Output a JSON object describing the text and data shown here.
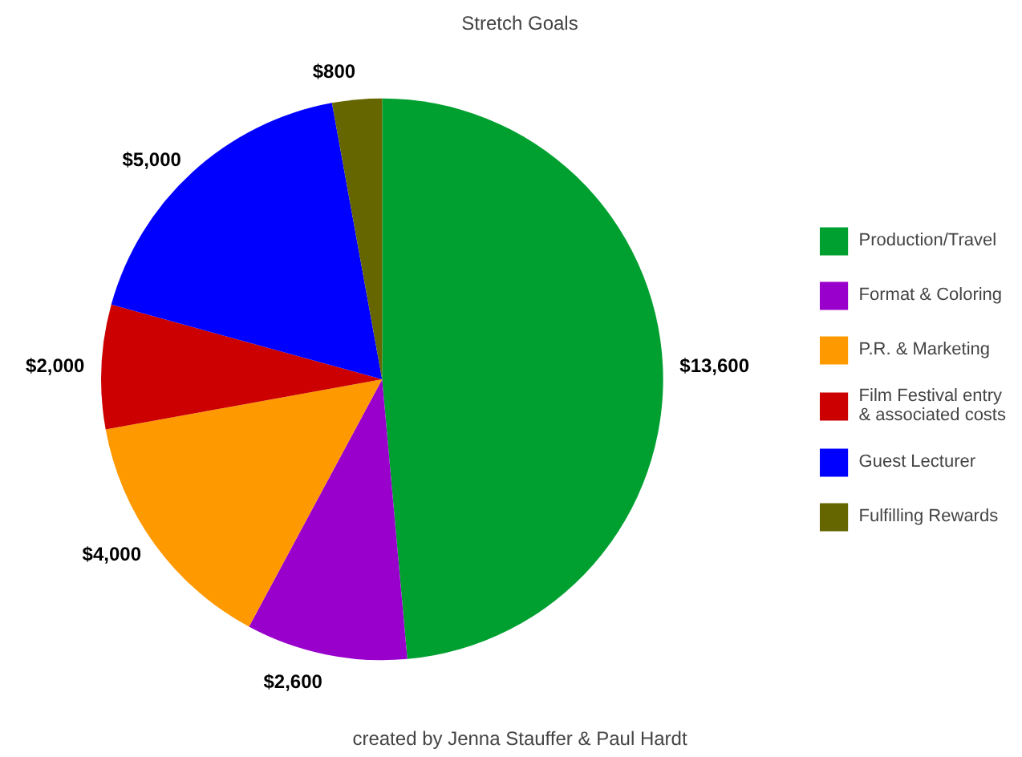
{
  "chart_data": {
    "type": "pie",
    "title": "Stretch Goals",
    "categories": [
      "Production/Travel",
      "Format & Coloring",
      "P.R. & Marketing",
      "Film Festival entry & associated costs",
      "Guest Lecturer",
      "Fulfilling Rewards"
    ],
    "values": [
      13600,
      2600,
      4000,
      2000,
      5000,
      800
    ],
    "colors": [
      "#00a030",
      "#9900cc",
      "#ff9900",
      "#cc0000",
      "#0000ff",
      "#666600"
    ],
    "value_labels": [
      "$13,600",
      "$2,600",
      "$4,000",
      "$2,000",
      "$5,000",
      "$800"
    ],
    "legend": "right",
    "annotations": [
      "created by Jenna Stauffer & Paul Hardt"
    ]
  }
}
